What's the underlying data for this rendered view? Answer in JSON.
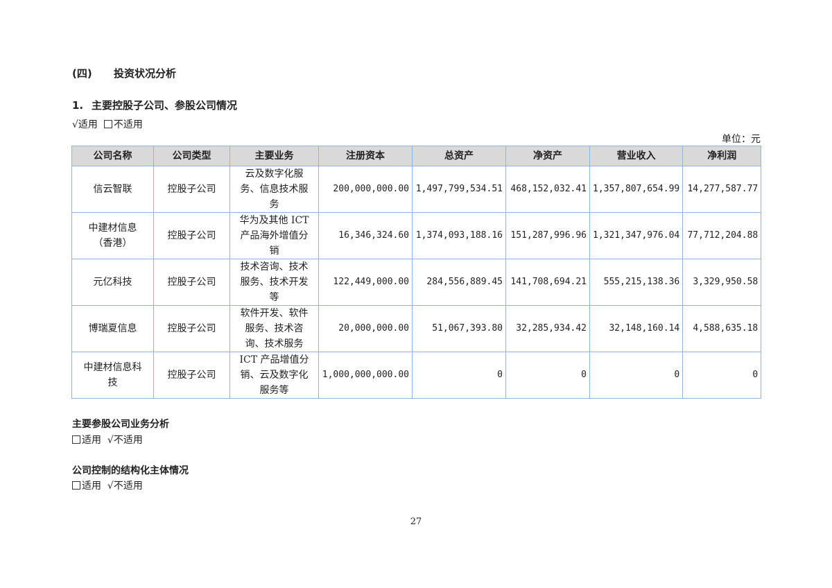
{
  "section_heading": {
    "number": "(四)",
    "title": "投资状况分析"
  },
  "subsection": {
    "number": "1.",
    "title": "主要控股子公司、参股公司情况"
  },
  "applicability_1": {
    "checked_label": "√适用",
    "unchecked_label": "不适用"
  },
  "unit": "单位：元",
  "table": {
    "headers": [
      "公司名称",
      "公司类型",
      "主要业务",
      "注册资本",
      "总资产",
      "净资产",
      "营业收入",
      "净利润"
    ],
    "rows": [
      {
        "name": "信云智联",
        "type": "控股子公司",
        "business": "云及数字化服\n务、信息技术服\n务",
        "registered_capital": "200,000,000.00",
        "total_assets": "1,497,799,534.51",
        "net_assets": "468,152,032.41",
        "revenue": "1,357,807,654.99",
        "net_profit": "14,277,587.77"
      },
      {
        "name": "中建材信息\n（香港）",
        "type": "控股子公司",
        "business": "华为及其他 ICT\n产品海外增值分\n销",
        "registered_capital": "16,346,324.60",
        "total_assets": "1,374,093,188.16",
        "net_assets": "151,287,996.96",
        "revenue": "1,321,347,976.04",
        "net_profit": "77,712,204.88"
      },
      {
        "name": "元亿科技",
        "type": "控股子公司",
        "business": "技术咨询、技术\n服务、技术开发\n等",
        "registered_capital": "122,449,000.00",
        "total_assets": "284,556,889.45",
        "net_assets": "141,708,694.21",
        "revenue": "555,215,138.36",
        "net_profit": "3,329,950.58"
      },
      {
        "name": "博瑞夏信息",
        "type": "控股子公司",
        "business": "软件开发、软件\n服务、技术咨\n询、技术服务",
        "registered_capital": "20,000,000.00",
        "total_assets": "51,067,393.80",
        "net_assets": "32,285,934.42",
        "revenue": "32,148,160.14",
        "net_profit": "4,588,635.18"
      },
      {
        "name": "中建材信息科\n技",
        "type": "控股子公司",
        "business": "ICT 产品增值分\n销、云及数字化\n服务等",
        "registered_capital": "1,000,000,000.00",
        "total_assets": "0",
        "net_assets": "0",
        "revenue": "0",
        "net_profit": "0"
      }
    ]
  },
  "participating_analysis": {
    "title": "主要参股公司业务分析",
    "unchecked_label": "适用",
    "checked_label": "√不适用"
  },
  "structured_entities": {
    "title": "公司控制的结构化主体情况",
    "unchecked_label": "适用",
    "checked_label": "√不适用"
  },
  "page_number": "27"
}
